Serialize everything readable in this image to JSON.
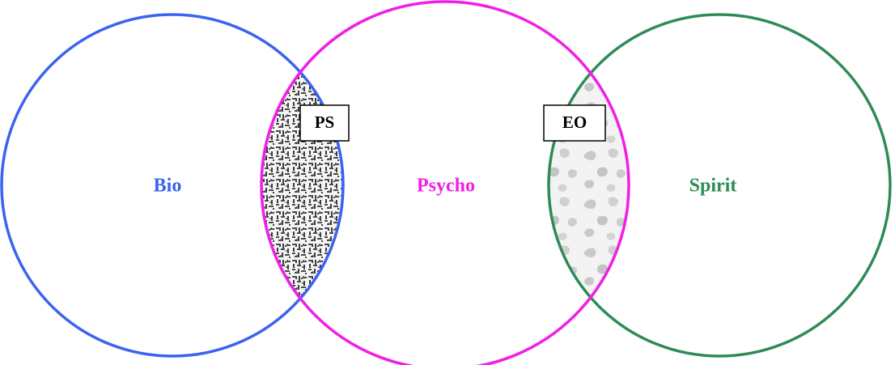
{
  "diagram": {
    "sets": [
      {
        "id": "bio",
        "label": "Bio",
        "color": "#3a63f0"
      },
      {
        "id": "psycho",
        "label": "Psycho",
        "color": "#f01fe6"
      },
      {
        "id": "spirit",
        "label": "Spirit",
        "color": "#2e8b57"
      }
    ],
    "intersections": [
      {
        "id": "bio-psycho",
        "label": "PS",
        "fill_style": "dense black-and-white maze texture"
      },
      {
        "id": "psycho-spirit",
        "label": "EO",
        "fill_style": "light gray blotch texture"
      }
    ]
  }
}
